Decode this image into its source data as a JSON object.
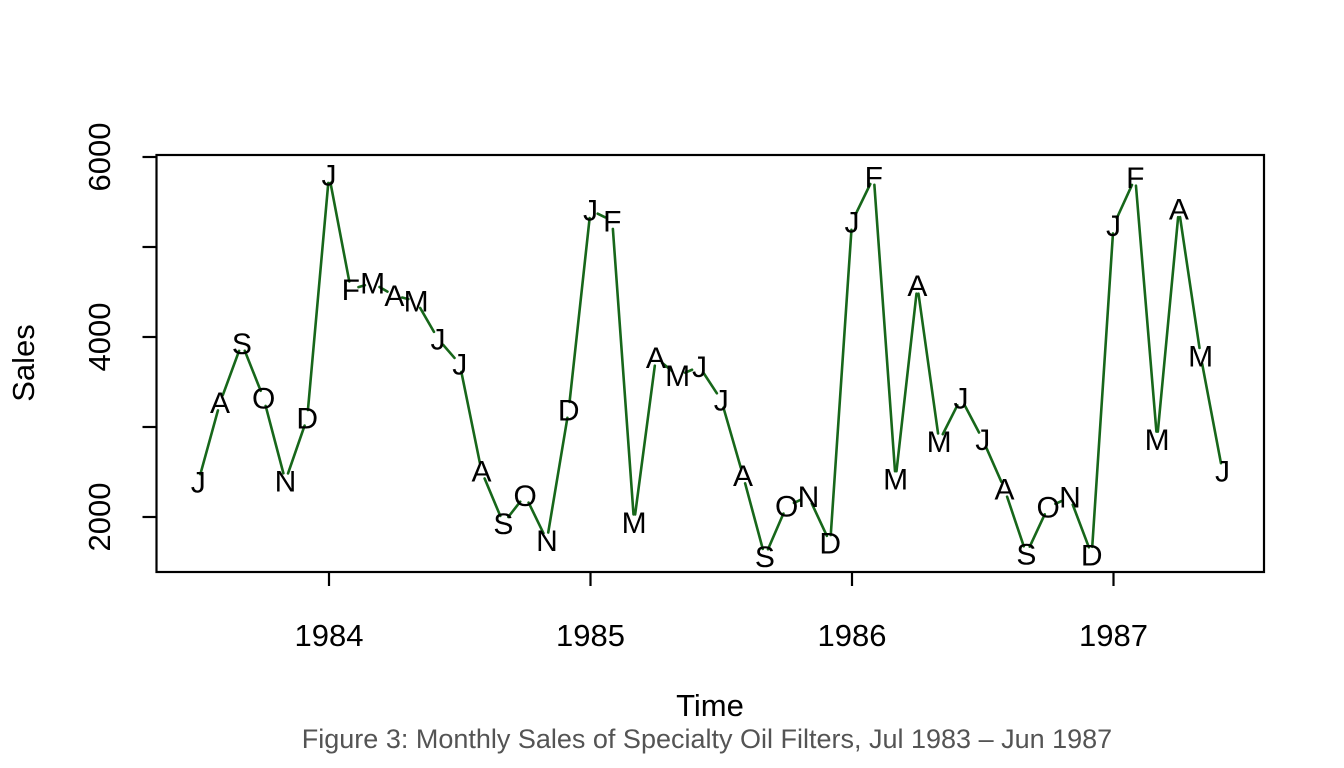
{
  "figure": {
    "caption": "Figure 3: Monthly Sales of Specialty Oil Filters, Jul 1983 – Jun 1987",
    "caption_color": "#545454",
    "background_color": "#ffffff"
  },
  "chart_data": {
    "type": "line",
    "title": "",
    "xlabel": "Time",
    "ylabel": "Sales",
    "legend": "none",
    "grid": false,
    "x_axis": {
      "tick_labels": [
        "1984",
        "1985",
        "1986",
        "1987"
      ],
      "tick_values": [
        1984,
        1985,
        1986,
        1987
      ],
      "range_years": [
        1983.34,
        1987.59
      ]
    },
    "y_axis": {
      "labeled_ticks": [
        2000,
        4000,
        6000
      ],
      "unlabeled_ticks": [
        3000,
        5000
      ],
      "range": [
        1400,
        6050
      ]
    },
    "style": {
      "line_color": "#17671a",
      "point_label_color": "#000000",
      "axis_color": "#000000",
      "point_marker": "month-initial-letters"
    },
    "series": [
      {
        "name": "Sales",
        "points": [
          {
            "year": 1983,
            "month": 7,
            "label": "J",
            "value": 2390
          },
          {
            "year": 1983,
            "month": 8,
            "label": "A",
            "value": 3270
          },
          {
            "year": 1983,
            "month": 9,
            "label": "S",
            "value": 3930
          },
          {
            "year": 1983,
            "month": 10,
            "label": "O",
            "value": 3320
          },
          {
            "year": 1983,
            "month": 11,
            "label": "N",
            "value": 2400
          },
          {
            "year": 1983,
            "month": 12,
            "label": "D",
            "value": 3100
          },
          {
            "year": 1984,
            "month": 1,
            "label": "J",
            "value": 5800
          },
          {
            "year": 1984,
            "month": 2,
            "label": "F",
            "value": 4530
          },
          {
            "year": 1984,
            "month": 3,
            "label": "M",
            "value": 4600
          },
          {
            "year": 1984,
            "month": 4,
            "label": "A",
            "value": 4460
          },
          {
            "year": 1984,
            "month": 5,
            "label": "M",
            "value": 4400
          },
          {
            "year": 1984,
            "month": 6,
            "label": "J",
            "value": 3980
          },
          {
            "year": 1984,
            "month": 7,
            "label": "J",
            "value": 3700
          },
          {
            "year": 1984,
            "month": 8,
            "label": "A",
            "value": 2510
          },
          {
            "year": 1984,
            "month": 9,
            "label": "S",
            "value": 1930
          },
          {
            "year": 1984,
            "month": 10,
            "label": "O",
            "value": 2240
          },
          {
            "year": 1984,
            "month": 11,
            "label": "N",
            "value": 1740
          },
          {
            "year": 1984,
            "month": 12,
            "label": "D",
            "value": 3190
          },
          {
            "year": 1985,
            "month": 1,
            "label": "J",
            "value": 5410
          },
          {
            "year": 1985,
            "month": 2,
            "label": "F",
            "value": 5290
          },
          {
            "year": 1985,
            "month": 3,
            "label": "M",
            "value": 1940
          },
          {
            "year": 1985,
            "month": 4,
            "label": "A",
            "value": 3770
          },
          {
            "year": 1985,
            "month": 5,
            "label": "M",
            "value": 3570
          },
          {
            "year": 1985,
            "month": 6,
            "label": "J",
            "value": 3670
          },
          {
            "year": 1985,
            "month": 7,
            "label": "J",
            "value": 3300
          },
          {
            "year": 1985,
            "month": 8,
            "label": "A",
            "value": 2460
          },
          {
            "year": 1985,
            "month": 9,
            "label": "S",
            "value": 1560
          },
          {
            "year": 1985,
            "month": 10,
            "label": "O",
            "value": 2120
          },
          {
            "year": 1985,
            "month": 11,
            "label": "N",
            "value": 2230
          },
          {
            "year": 1985,
            "month": 12,
            "label": "D",
            "value": 1710
          },
          {
            "year": 1986,
            "month": 1,
            "label": "J",
            "value": 5280
          },
          {
            "year": 1986,
            "month": 2,
            "label": "F",
            "value": 5780
          },
          {
            "year": 1986,
            "month": 3,
            "label": "M",
            "value": 2420
          },
          {
            "year": 1986,
            "month": 4,
            "label": "A",
            "value": 4570
          },
          {
            "year": 1986,
            "month": 5,
            "label": "M",
            "value": 2840
          },
          {
            "year": 1986,
            "month": 6,
            "label": "J",
            "value": 3320
          },
          {
            "year": 1986,
            "month": 7,
            "label": "J",
            "value": 2860
          },
          {
            "year": 1986,
            "month": 8,
            "label": "A",
            "value": 2310
          },
          {
            "year": 1986,
            "month": 9,
            "label": "S",
            "value": 1590
          },
          {
            "year": 1986,
            "month": 10,
            "label": "O",
            "value": 2110
          },
          {
            "year": 1986,
            "month": 11,
            "label": "N",
            "value": 2220
          },
          {
            "year": 1986,
            "month": 12,
            "label": "D",
            "value": 1580
          },
          {
            "year": 1987,
            "month": 1,
            "label": "J",
            "value": 5240
          },
          {
            "year": 1987,
            "month": 2,
            "label": "F",
            "value": 5770
          },
          {
            "year": 1987,
            "month": 3,
            "label": "M",
            "value": 2860
          },
          {
            "year": 1987,
            "month": 4,
            "label": "A",
            "value": 5420
          },
          {
            "year": 1987,
            "month": 5,
            "label": "M",
            "value": 3790
          },
          {
            "year": 1987,
            "month": 6,
            "label": "J",
            "value": 2510
          }
        ]
      }
    ]
  }
}
